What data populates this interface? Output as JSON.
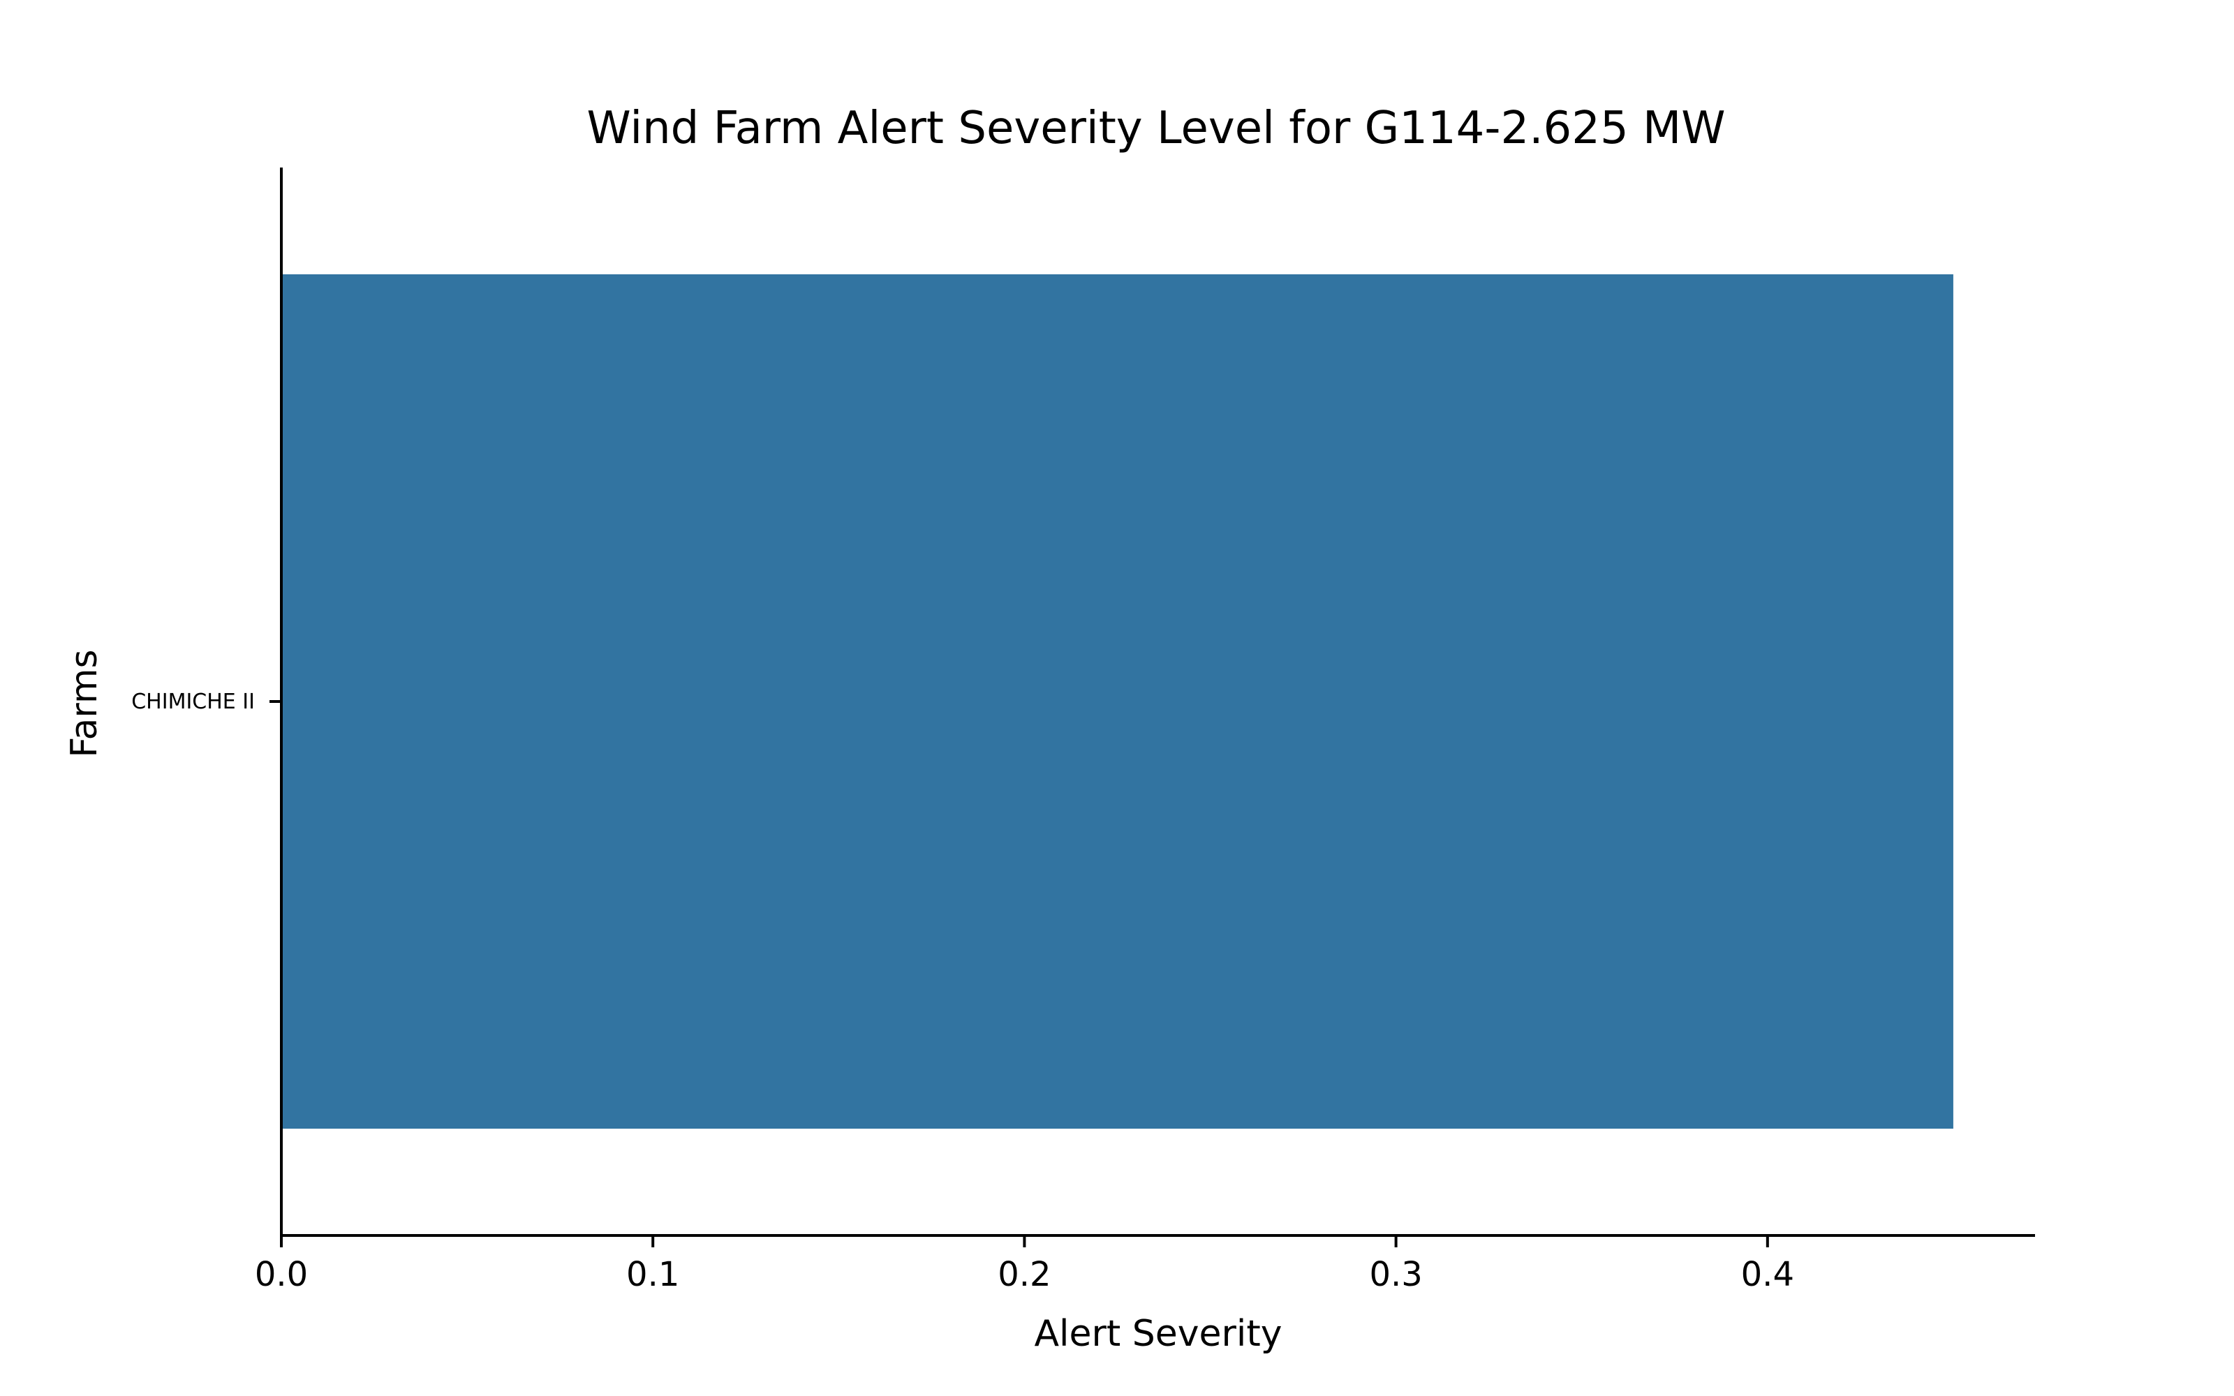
{
  "chart_data": {
    "type": "bar",
    "orientation": "horizontal",
    "title": "Wind Farm Alert Severity Level for G114-2.625 MW",
    "xlabel": "Alert Severity",
    "ylabel": "Farms",
    "categories": [
      "CHIMICHE II"
    ],
    "values": [
      0.45
    ],
    "xlim": [
      0.0,
      0.472
    ],
    "xticks": [
      "0.0",
      "0.1",
      "0.2",
      "0.3",
      "0.4"
    ],
    "grid": false,
    "legend": "none",
    "bar_color": "#3274a1"
  }
}
